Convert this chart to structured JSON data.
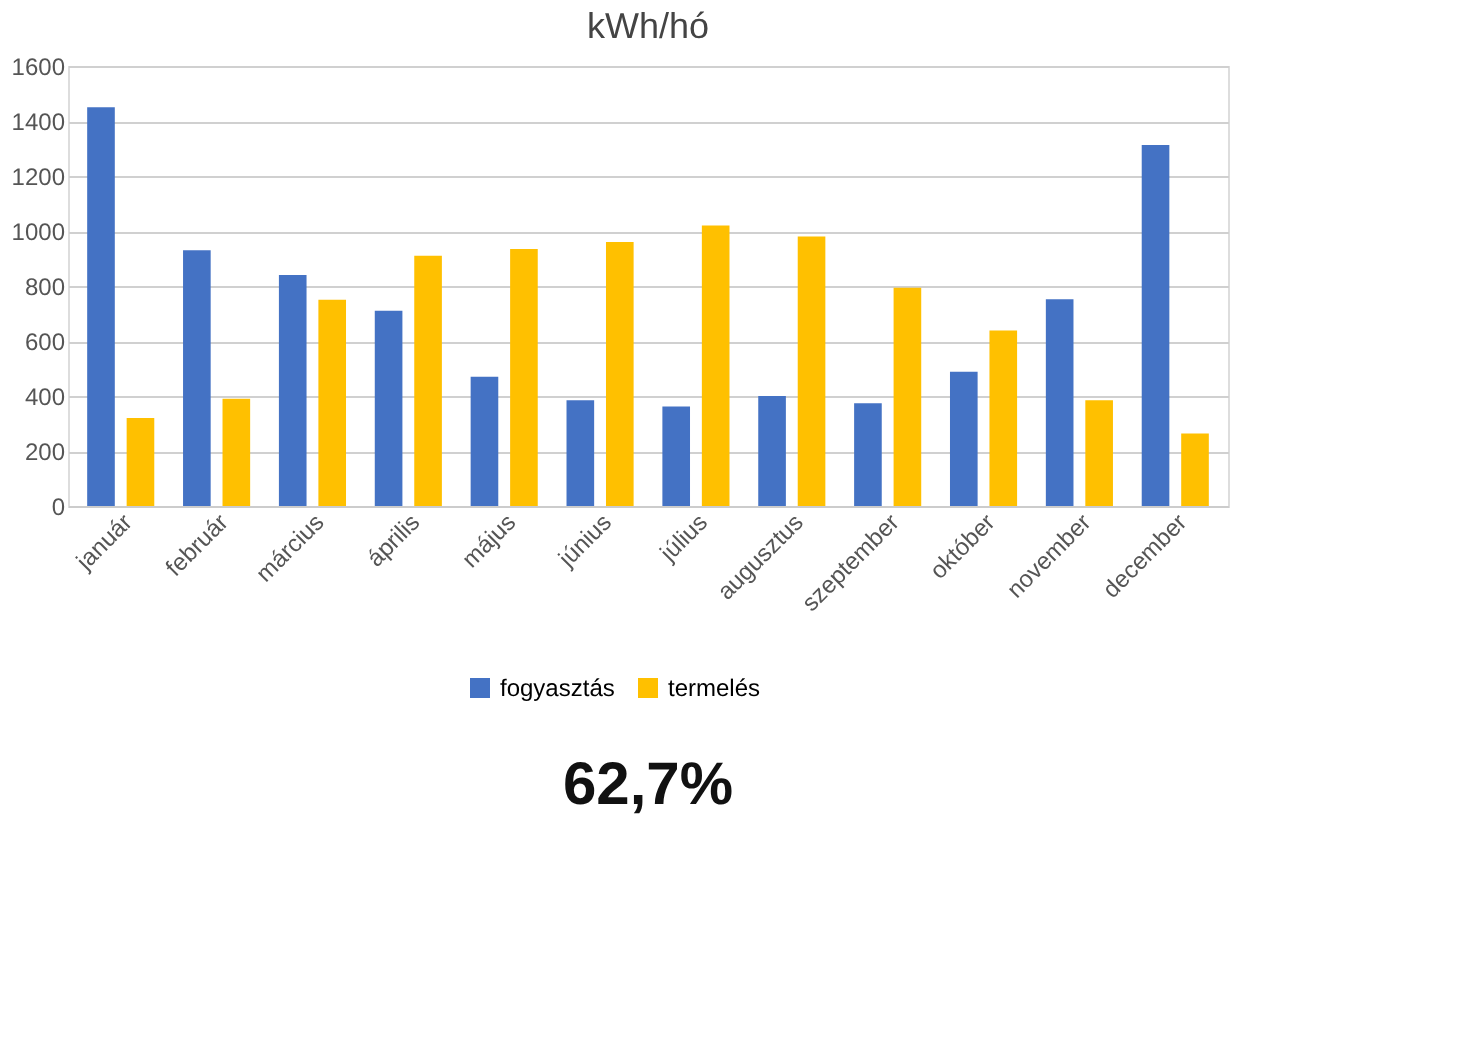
{
  "chart_data": {
    "type": "bar",
    "title": "kWh/hó",
    "categories": [
      "január",
      "február",
      "március",
      "április",
      "május",
      "június",
      "július",
      "augusztus",
      "szeptember",
      "október",
      "november",
      "december"
    ],
    "series": [
      {
        "name": "fogyasztás",
        "color": "#4472c4",
        "values": [
          1450,
          930,
          840,
          710,
          470,
          385,
          362,
          400,
          374,
          488,
          752,
          1313
        ]
      },
      {
        "name": "termelés",
        "color": "#ffc000",
        "values": [
          320,
          390,
          750,
          910,
          935,
          960,
          1020,
          980,
          794,
          638,
          385,
          264
        ]
      }
    ],
    "ylim": [
      0,
      1600
    ],
    "yticks": [
      0,
      200,
      400,
      600,
      800,
      1000,
      1200,
      1400,
      1600
    ],
    "grid": "y",
    "legend": "bottom",
    "annotations": [
      "62,7%"
    ]
  }
}
